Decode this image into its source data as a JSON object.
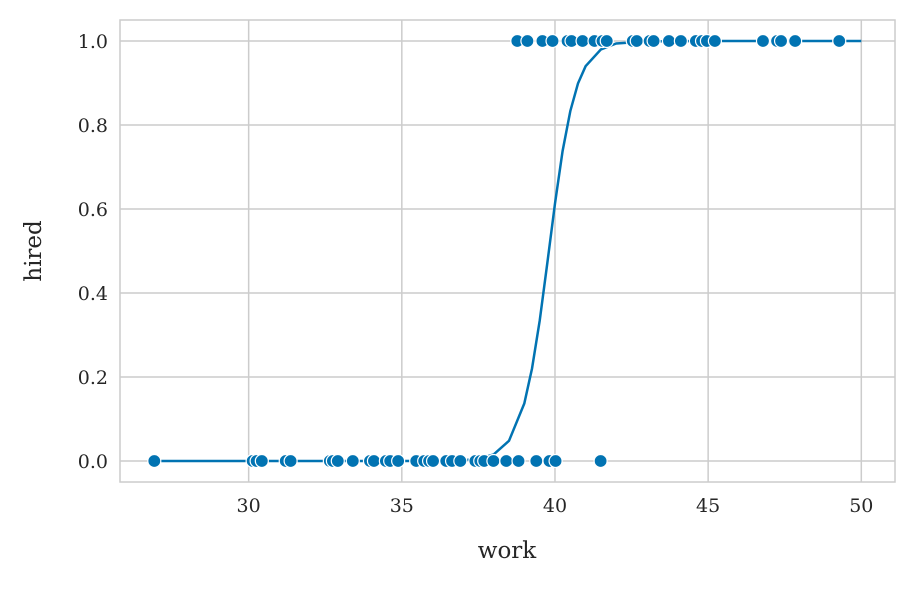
{
  "chart_data": {
    "type": "scatter",
    "xlabel": "work",
    "ylabel": "hired",
    "xlim": [
      25.8,
      51.1
    ],
    "ylim": [
      -0.05,
      1.05
    ],
    "xticks": [
      30,
      35,
      40,
      45,
      50
    ],
    "yticks": [
      0.0,
      0.2,
      0.4,
      0.6,
      0.8,
      1.0
    ],
    "grid": true,
    "color": "#0173b2",
    "points_hired_0": [
      26.92,
      30.13,
      30.26,
      30.43,
      31.21,
      31.37,
      32.65,
      32.75,
      32.91,
      33.4,
      33.96,
      34.09,
      34.48,
      34.62,
      34.88,
      35.47,
      35.73,
      35.89,
      36.02,
      36.45,
      36.64,
      36.91,
      37.4,
      37.56,
      37.69,
      37.99,
      38.41,
      38.81,
      39.39,
      39.82,
      40.02,
      41.49
    ],
    "points_hired_1": [
      38.77,
      39.1,
      39.59,
      39.92,
      40.41,
      40.54,
      40.9,
      41.29,
      41.55,
      41.69,
      42.54,
      42.67,
      43.09,
      43.22,
      43.72,
      44.11,
      44.6,
      44.8,
      44.96,
      45.22,
      46.79,
      47.25,
      47.38,
      47.84,
      49.28
    ],
    "curve": {
      "x": [
        26.9,
        30,
        33,
        35,
        36,
        37,
        37.5,
        38,
        38.5,
        39,
        39.25,
        39.5,
        39.75,
        40,
        40.25,
        40.5,
        40.75,
        41,
        41.5,
        42,
        43,
        45,
        50
      ],
      "y": [
        0,
        0,
        0,
        0,
        0.0002,
        0.0016,
        0.005,
        0.0157,
        0.048,
        0.137,
        0.22,
        0.334,
        0.471,
        0.613,
        0.738,
        0.833,
        0.899,
        0.94,
        0.98,
        0.994,
        0.999,
        1,
        1
      ]
    }
  }
}
